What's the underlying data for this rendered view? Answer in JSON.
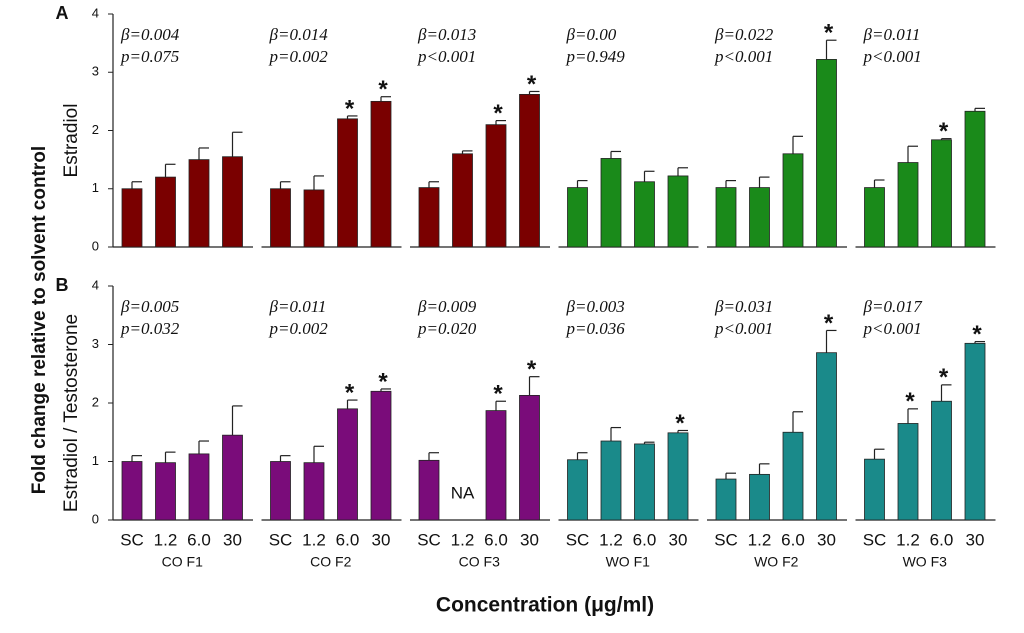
{
  "figure": {
    "ylabel": "Fold change relative to solvent control",
    "xlabel": "Concentration (μg/ml)"
  },
  "chart_data": [
    {
      "type": "bar",
      "panel": "A",
      "ylabel": "Estradiol",
      "ylim": [
        0,
        4
      ],
      "yticks": [
        0,
        1,
        2,
        3,
        4
      ],
      "color": "#7a0000",
      "categories": [
        null,
        null,
        null,
        null
      ],
      "values": [
        1.0,
        1.2,
        1.5,
        1.55
      ],
      "errors": [
        0.12,
        0.22,
        0.2,
        0.42
      ],
      "markers": [
        null,
        null,
        null,
        null
      ],
      "beta": "β=0.004",
      "p": "p=0.075"
    },
    {
      "type": "bar",
      "ylim": [
        0,
        4
      ],
      "color": "#7a0000",
      "categories": [
        null,
        null,
        null,
        null
      ],
      "values": [
        1.0,
        0.98,
        2.2,
        2.5
      ],
      "errors": [
        0.12,
        0.24,
        0.05,
        0.08
      ],
      "markers": [
        null,
        null,
        "*",
        "*"
      ],
      "beta": "β=0.014",
      "p": "p=0.002"
    },
    {
      "type": "bar",
      "ylim": [
        0,
        4
      ],
      "color": "#7a0000",
      "categories": [
        null,
        null,
        null,
        null
      ],
      "values": [
        1.02,
        1.6,
        2.1,
        2.62
      ],
      "errors": [
        0.1,
        0.05,
        0.07,
        0.05
      ],
      "markers": [
        null,
        null,
        "*",
        "*"
      ],
      "beta": "β=0.013",
      "p": "p<0.001"
    },
    {
      "type": "bar",
      "ylim": [
        0,
        4
      ],
      "color": "#1a8a1a",
      "categories": [
        null,
        null,
        null,
        null
      ],
      "values": [
        1.02,
        1.52,
        1.12,
        1.22
      ],
      "errors": [
        0.12,
        0.12,
        0.18,
        0.14
      ],
      "markers": [
        null,
        null,
        null,
        null
      ],
      "beta": "β=0.00",
      "p": "p=0.949"
    },
    {
      "type": "bar",
      "ylim": [
        0,
        4
      ],
      "color": "#1a8a1a",
      "categories": [
        null,
        null,
        null,
        null
      ],
      "values": [
        1.02,
        1.02,
        1.6,
        3.22
      ],
      "errors": [
        0.12,
        0.18,
        0.3,
        0.33
      ],
      "markers": [
        null,
        null,
        null,
        "*"
      ],
      "beta": "β=0.022",
      "p": "p<0.001"
    },
    {
      "type": "bar",
      "ylim": [
        0,
        4
      ],
      "color": "#1a8a1a",
      "categories": [
        null,
        null,
        null,
        null
      ],
      "values": [
        1.02,
        1.45,
        1.84,
        2.33
      ],
      "errors": [
        0.13,
        0.28,
        0.02,
        0.05
      ],
      "markers": [
        null,
        null,
        "*",
        null
      ],
      "beta": "β=0.011",
      "p": "p<0.001"
    },
    {
      "type": "bar",
      "panel": "B",
      "ylabel": "Estradiol / Testosterone",
      "ylim": [
        0,
        4
      ],
      "yticks": [
        0,
        1,
        2,
        3,
        4
      ],
      "color": "#7a0c7a",
      "label": "CO F1",
      "categories": [
        "SC",
        "1.2",
        "6.0",
        "30"
      ],
      "values": [
        1.0,
        0.98,
        1.13,
        1.45
      ],
      "errors": [
        0.1,
        0.18,
        0.22,
        0.5
      ],
      "markers": [
        null,
        null,
        null,
        null
      ],
      "beta": "β=0.005",
      "p": "p=0.032"
    },
    {
      "type": "bar",
      "ylim": [
        0,
        4
      ],
      "color": "#7a0c7a",
      "label": "CO F2",
      "categories": [
        "SC",
        "1.2",
        "6.0",
        "30"
      ],
      "values": [
        1.0,
        0.98,
        1.9,
        2.2
      ],
      "errors": [
        0.1,
        0.28,
        0.15,
        0.04
      ],
      "markers": [
        null,
        null,
        "*",
        "*"
      ],
      "beta": "β=0.011",
      "p": "p=0.002"
    },
    {
      "type": "bar",
      "ylim": [
        0,
        4
      ],
      "color": "#7a0c7a",
      "label": "CO F3",
      "categories": [
        "SC",
        "1.2",
        "6.0",
        "30"
      ],
      "values": [
        1.02,
        null,
        1.87,
        2.13
      ],
      "value_labels": [
        null,
        "NA",
        null,
        null
      ],
      "errors": [
        0.13,
        null,
        0.16,
        0.32
      ],
      "markers": [
        null,
        null,
        "*",
        "*"
      ],
      "beta": "β=0.009",
      "p": "p=0.020"
    },
    {
      "type": "bar",
      "ylim": [
        0,
        4
      ],
      "color": "#1a8a8a",
      "label": "WO F1",
      "categories": [
        "SC",
        "1.2",
        "6.0",
        "30"
      ],
      "values": [
        1.03,
        1.35,
        1.3,
        1.49
      ],
      "errors": [
        0.12,
        0.23,
        0.03,
        0.04
      ],
      "markers": [
        null,
        null,
        null,
        "*"
      ],
      "beta": "β=0.003",
      "p": "p=0.036"
    },
    {
      "type": "bar",
      "ylim": [
        0,
        4
      ],
      "color": "#1a8a8a",
      "label": "WO F2",
      "categories": [
        "SC",
        "1.2",
        "6.0",
        "30"
      ],
      "values": [
        0.7,
        0.78,
        1.5,
        2.86
      ],
      "errors": [
        0.1,
        0.18,
        0.35,
        0.38
      ],
      "markers": [
        null,
        null,
        null,
        "*"
      ],
      "beta": "β=0.031",
      "p": "p<0.001"
    },
    {
      "type": "bar",
      "ylim": [
        0,
        4
      ],
      "color": "#1a8a8a",
      "label": "WO F3",
      "categories": [
        "SC",
        "1.2",
        "6.0",
        "30"
      ],
      "values": [
        1.04,
        1.65,
        2.03,
        3.02
      ],
      "errors": [
        0.17,
        0.25,
        0.28,
        0.03
      ],
      "markers": [
        null,
        "*",
        "*",
        "*"
      ],
      "beta": "β=0.017",
      "p": "p<0.001"
    }
  ]
}
